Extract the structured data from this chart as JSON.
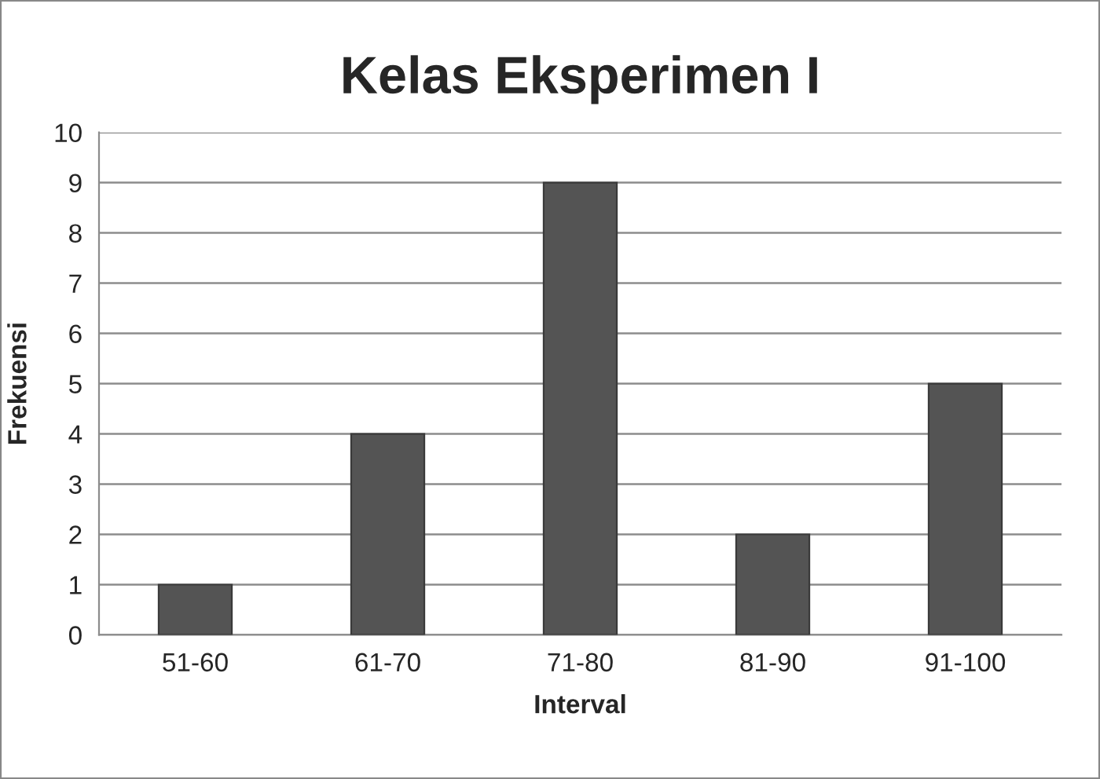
{
  "chart_data": {
    "type": "bar",
    "title": "Kelas Eksperimen I",
    "xlabel": "Interval",
    "ylabel": "Frekuensi",
    "categories": [
      "51-60",
      "61-70",
      "71-80",
      "81-90",
      "91-100"
    ],
    "values": [
      1,
      4,
      9,
      2,
      5
    ],
    "color": "#545454",
    "ylim": [
      0,
      10
    ],
    "yticks": [
      0,
      1,
      2,
      3,
      4,
      5,
      6,
      7,
      8,
      9,
      10
    ],
    "grid": "y",
    "legend": false
  }
}
